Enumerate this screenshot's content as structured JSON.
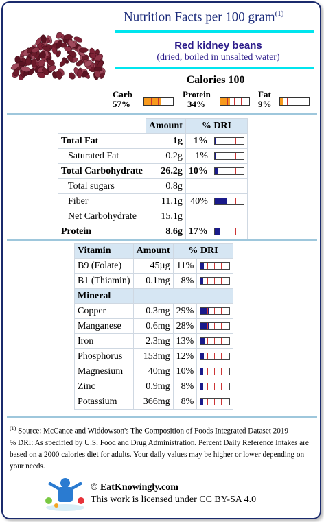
{
  "header": {
    "title": "Nutrition Facts per 100 gram",
    "title_sup": "(1)",
    "food_name": "Red kidney beans",
    "food_sub": "(dried, boiled in unsalted water)"
  },
  "calories_label": "Calories 100",
  "macros": [
    {
      "name": "Carb",
      "pct_label": "57%",
      "pct": 57
    },
    {
      "name": "Protein",
      "pct_label": "34%",
      "pct": 34
    },
    {
      "name": "Fat",
      "pct_label": "9%",
      "pct": 9
    }
  ],
  "table1": {
    "headers": [
      "Amount",
      "% DRI"
    ],
    "rows": [
      {
        "name": "Total Fat",
        "amount": "1g",
        "dri": "1%",
        "dri_val": 1,
        "bold": true
      },
      {
        "name": "Saturated Fat",
        "amount": "0.2g",
        "dri": "1%",
        "dri_val": 1
      },
      {
        "name": "Total Carbohydrate",
        "amount": "26.2g",
        "dri": "10%",
        "dri_val": 10,
        "bold": true
      },
      {
        "name": "Total sugars",
        "amount": "0.8g",
        "dri": "",
        "dri_val": null
      },
      {
        "name": "Fiber",
        "amount": "11.1g",
        "dri": "40%",
        "dri_val": 40
      },
      {
        "name": "Net Carbohydrate",
        "amount": "15.1g",
        "dri": "",
        "dri_val": null
      },
      {
        "name": "Protein",
        "amount": "8.6g",
        "dri": "17%",
        "dri_val": 17,
        "bold": true
      }
    ]
  },
  "table2": {
    "headers": [
      "Vitamin",
      "Amount",
      "% DRI"
    ],
    "vitamins": [
      {
        "name": "B9 (Folate)",
        "amount": "45µg",
        "dri": "11%",
        "dri_val": 11
      },
      {
        "name": "B1 (Thiamin)",
        "amount": "0.1mg",
        "dri": "8%",
        "dri_val": 8
      }
    ],
    "mineral_header": "Mineral",
    "minerals": [
      {
        "name": "Copper",
        "amount": "0.3mg",
        "dri": "29%",
        "dri_val": 29
      },
      {
        "name": "Manganese",
        "amount": "0.6mg",
        "dri": "28%",
        "dri_val": 28
      },
      {
        "name": "Iron",
        "amount": "2.3mg",
        "dri": "13%",
        "dri_val": 13
      },
      {
        "name": "Phosphorus",
        "amount": "153mg",
        "dri": "12%",
        "dri_val": 12
      },
      {
        "name": "Magnesium",
        "amount": "40mg",
        "dri": "10%",
        "dri_val": 10
      },
      {
        "name": "Zinc",
        "amount": "0.9mg",
        "dri": "8%",
        "dri_val": 8
      },
      {
        "name": "Potassium",
        "amount": "366mg",
        "dri": "8%",
        "dri_val": 8
      }
    ]
  },
  "footnote": {
    "sup": "(1)",
    "source": " Source: McCance and Widdowson's The Composition of Foods Integrated Dataset 2019",
    "dri_note": "% DRI: As specified by U.S. Food and Drug Administration. Percent Daily Reference Intakes are based on a 2000 calories diet for adults. Your daily values may be higher or lower depending on your needs."
  },
  "brand": {
    "site": "© EatKnowingly.com",
    "license": "This work is licensed under CC BY-SA 4.0"
  },
  "colors": {
    "macro_fill": "#f79a1e",
    "dri_fill": "#1a1a8a",
    "title": "#1a2a7a",
    "accent_cyan": "#00e5ee"
  }
}
